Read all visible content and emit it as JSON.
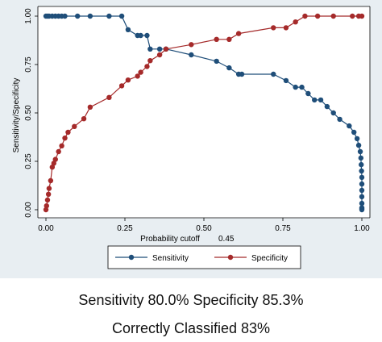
{
  "chart_data": {
    "type": "line",
    "xlabel": "Probability cutoff",
    "cutoff_label": "0.45",
    "ylabel": "Sensitivity/Specificity",
    "xlim": [
      0,
      1
    ],
    "ylim": [
      0,
      1
    ],
    "x_ticks": [
      "0.00",
      "0.25",
      "0.50",
      "0.75",
      "1.00"
    ],
    "y_ticks": [
      "0.00",
      "0.25",
      "0.50",
      "0.75",
      "1.00"
    ],
    "grid": false,
    "legend_position": "bottom",
    "series": [
      {
        "name": "Sensitivity",
        "color": "#1f4e79",
        "x": [
          0.0,
          0.005,
          0.01,
          0.02,
          0.03,
          0.04,
          0.05,
          0.06,
          0.1,
          0.14,
          0.2,
          0.24,
          0.26,
          0.29,
          0.3,
          0.32,
          0.33,
          0.36,
          0.38,
          0.46,
          0.54,
          0.58,
          0.61,
          0.62,
          0.72,
          0.76,
          0.79,
          0.81,
          0.83,
          0.85,
          0.87,
          0.89,
          0.91,
          0.93,
          0.96,
          0.975,
          0.985,
          0.99,
          0.995,
          0.997,
          0.998,
          0.999,
          1.0,
          1.0,
          1.0,
          1.0,
          1.0,
          1.0,
          1.0,
          1.0
        ],
        "y": [
          1.0,
          1.0,
          1.0,
          1.0,
          1.0,
          1.0,
          1.0,
          1.0,
          1.0,
          1.0,
          1.0,
          1.0,
          0.93,
          0.9,
          0.9,
          0.9,
          0.83,
          0.83,
          0.83,
          0.8,
          0.767,
          0.733,
          0.7,
          0.7,
          0.7,
          0.667,
          0.633,
          0.633,
          0.6,
          0.567,
          0.567,
          0.533,
          0.5,
          0.467,
          0.433,
          0.4,
          0.367,
          0.333,
          0.3,
          0.267,
          0.233,
          0.2,
          0.167,
          0.133,
          0.1,
          0.067,
          0.033,
          0.01,
          0.005,
          0.0
        ]
      },
      {
        "name": "Specificity",
        "color": "#a52a2a",
        "x": [
          0.0,
          0.002,
          0.005,
          0.008,
          0.01,
          0.015,
          0.02,
          0.025,
          0.03,
          0.04,
          0.05,
          0.06,
          0.07,
          0.09,
          0.12,
          0.14,
          0.2,
          0.24,
          0.26,
          0.29,
          0.3,
          0.32,
          0.33,
          0.36,
          0.38,
          0.46,
          0.54,
          0.58,
          0.61,
          0.72,
          0.76,
          0.79,
          0.82,
          0.86,
          0.91,
          0.97,
          0.99,
          1.0
        ],
        "y": [
          0.0,
          0.02,
          0.05,
          0.08,
          0.11,
          0.15,
          0.22,
          0.24,
          0.26,
          0.3,
          0.33,
          0.37,
          0.4,
          0.43,
          0.47,
          0.53,
          0.58,
          0.64,
          0.67,
          0.69,
          0.71,
          0.74,
          0.77,
          0.8,
          0.83,
          0.853,
          0.88,
          0.88,
          0.91,
          0.94,
          0.94,
          0.97,
          1.0,
          1.0,
          1.0,
          1.0,
          1.0,
          1.0
        ]
      }
    ]
  },
  "caption": {
    "line1": "Sensitivity 80.0% Specificity 85.3%",
    "line2": "Correctly Classified 83%"
  }
}
